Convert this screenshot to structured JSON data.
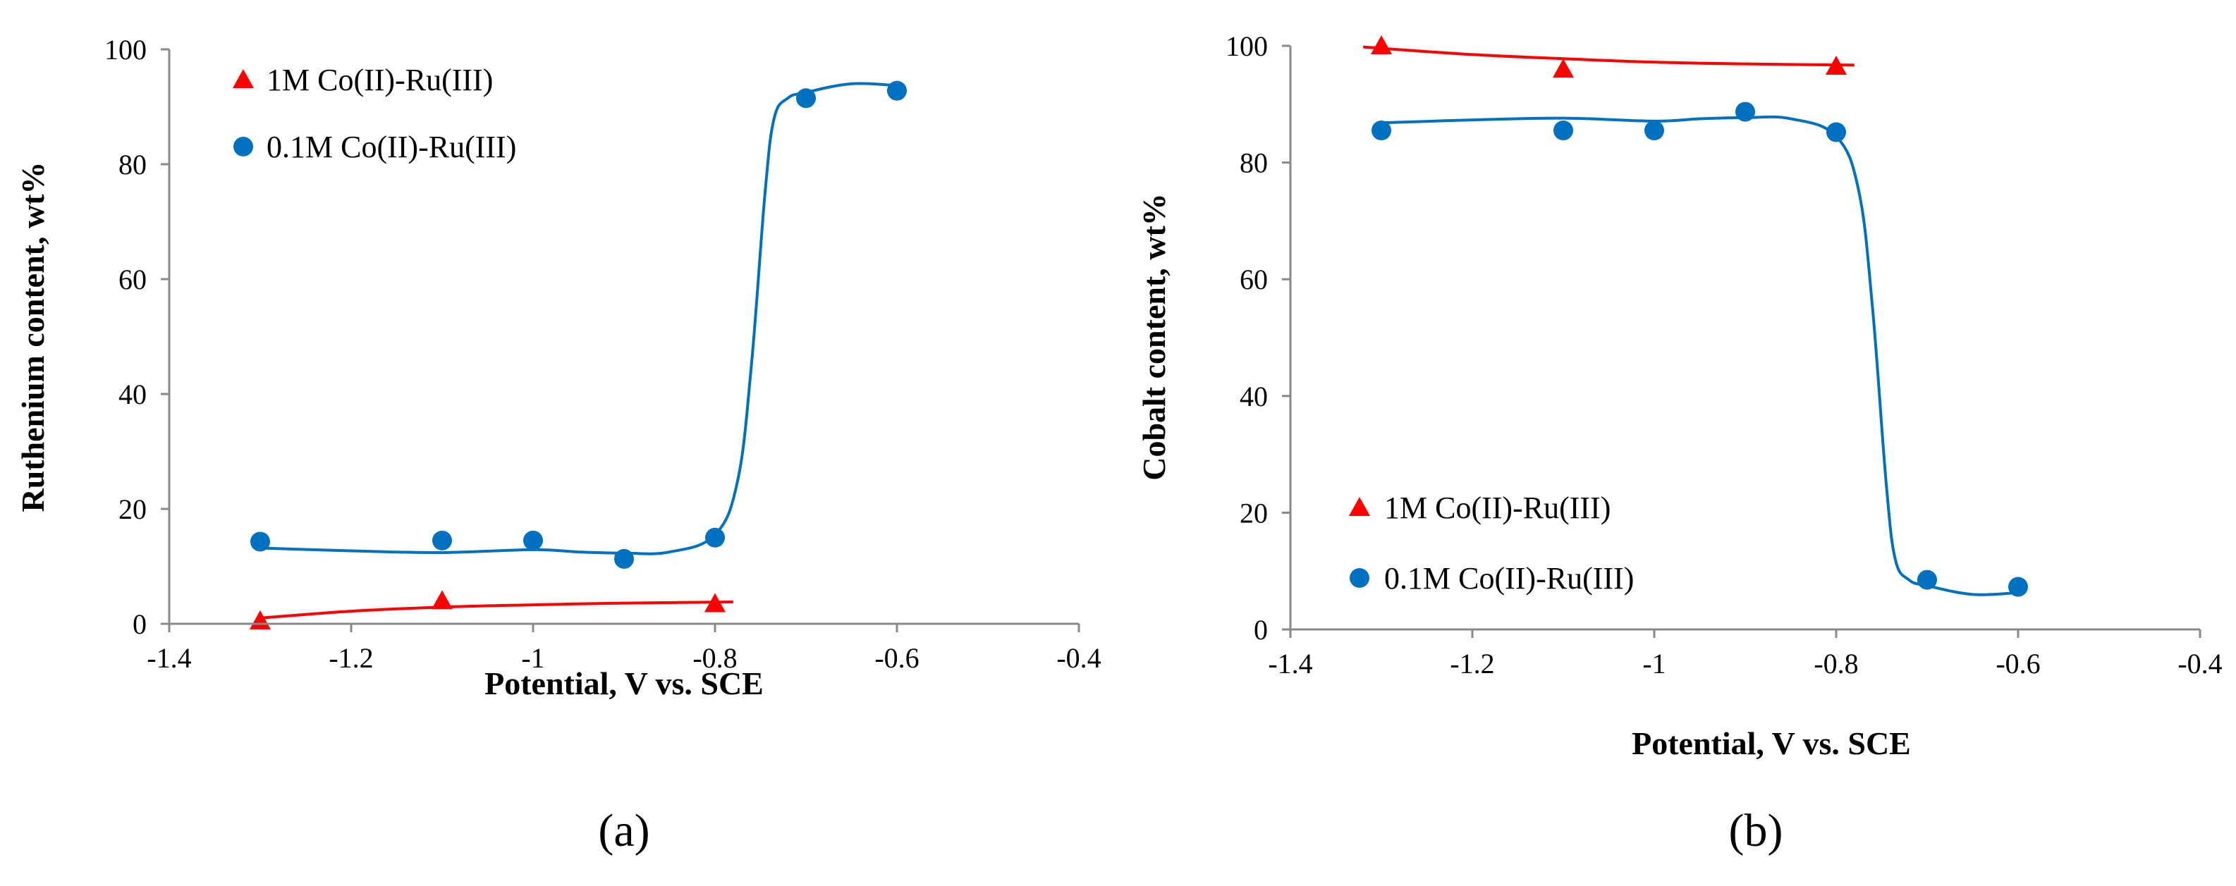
{
  "chart_data": [
    {
      "id": "a",
      "type": "scatter",
      "caption": "(a)",
      "xlabel": "Potential, V vs. SCE",
      "ylabel": "Ruthenium  content, wt%",
      "xlim": [
        -1.4,
        -0.4
      ],
      "ylim": [
        0,
        100
      ],
      "xticks": [
        -1.4,
        -1.2,
        -1,
        -0.8,
        -0.6,
        -0.4
      ],
      "xtick_labels": [
        "-1.4",
        "-1.2",
        "-1",
        "-0.8",
        "-0.6",
        "-0.4"
      ],
      "yticks": [
        0,
        20,
        40,
        60,
        80,
        100
      ],
      "ytick_labels": [
        "0",
        "20",
        "40",
        "60",
        "80",
        "100"
      ],
      "grid": false,
      "legend_position": "top-left",
      "series": [
        {
          "name": "1M Co(II)-Ru(III)",
          "marker": "triangle",
          "color": "#ff0000",
          "points": [
            {
              "x": -1.3,
              "y": 0.5
            },
            {
              "x": -1.1,
              "y": 4
            },
            {
              "x": -0.8,
              "y": 3.5
            }
          ],
          "fit": [
            [
              -1.3,
              1.0
            ],
            [
              -1.2,
              2.2
            ],
            [
              -1.1,
              2.9
            ],
            [
              -1.0,
              3.3
            ],
            [
              -0.9,
              3.6
            ],
            [
              -0.78,
              3.8
            ]
          ]
        },
        {
          "name": "0.1M Co(II)-Ru(III)",
          "marker": "circle",
          "color": "#0070c0",
          "points": [
            {
              "x": -1.3,
              "y": 14.3
            },
            {
              "x": -1.1,
              "y": 14.5
            },
            {
              "x": -1.0,
              "y": 14.5
            },
            {
              "x": -0.9,
              "y": 11.3
            },
            {
              "x": -0.8,
              "y": 15
            },
            {
              "x": -0.7,
              "y": 91.5
            },
            {
              "x": -0.6,
              "y": 92.8
            }
          ],
          "fit": [
            [
              -1.3,
              13.2
            ],
            [
              -1.2,
              12.7
            ],
            [
              -1.1,
              12.4
            ],
            [
              -1.0,
              12.9
            ],
            [
              -0.95,
              12.5
            ],
            [
              -0.9,
              12.3
            ],
            [
              -0.85,
              12.5
            ],
            [
              -0.8,
              15.5
            ],
            [
              -0.775,
              25
            ],
            [
              -0.76,
              45
            ],
            [
              -0.745,
              75
            ],
            [
              -0.735,
              88
            ],
            [
              -0.72,
              91.5
            ],
            [
              -0.7,
              92.5
            ],
            [
              -0.65,
              94
            ],
            [
              -0.6,
              93.7
            ]
          ]
        }
      ]
    },
    {
      "id": "b",
      "type": "scatter",
      "caption": "(b)",
      "xlabel": "Potential, V vs. SCE",
      "ylabel": "Cobalt content, wt%",
      "xlim": [
        -1.4,
        -0.4
      ],
      "ylim": [
        0,
        100
      ],
      "xticks": [
        -1.4,
        -1.2,
        -1,
        -0.8,
        -0.6,
        -0.4
      ],
      "xtick_labels": [
        "-1.4",
        "-1.2",
        "-1",
        "-0.8",
        "-0.6",
        "-0.4"
      ],
      "yticks": [
        0,
        20,
        40,
        60,
        80,
        100
      ],
      "ytick_labels": [
        "0",
        "20",
        "40",
        "60",
        "80",
        "100"
      ],
      "grid": false,
      "legend_position": "bottom-left",
      "series": [
        {
          "name": "1M Co(II)-Ru(III)",
          "marker": "triangle",
          "color": "#ff0000",
          "points": [
            {
              "x": -1.3,
              "y": 100
            },
            {
              "x": -1.1,
              "y": 96
            },
            {
              "x": -0.8,
              "y": 96.5
            }
          ],
          "fit": [
            [
              -1.32,
              99.8
            ],
            [
              -1.2,
              98.5
            ],
            [
              -1.1,
              97.8
            ],
            [
              -1.0,
              97.2
            ],
            [
              -0.9,
              96.9
            ],
            [
              -0.78,
              96.7
            ]
          ]
        },
        {
          "name": "0.1M Co(II)-Ru(III)",
          "marker": "circle",
          "color": "#0070c0",
          "points": [
            {
              "x": -1.3,
              "y": 85.5
            },
            {
              "x": -1.1,
              "y": 85.5
            },
            {
              "x": -1.0,
              "y": 85.5
            },
            {
              "x": -0.9,
              "y": 88.7
            },
            {
              "x": -0.8,
              "y": 85.2
            },
            {
              "x": -0.7,
              "y": 8.5
            },
            {
              "x": -0.6,
              "y": 7.3
            }
          ],
          "fit": [
            [
              -1.3,
              86.8
            ],
            [
              -1.2,
              87.3
            ],
            [
              -1.1,
              87.6
            ],
            [
              -1.0,
              87.1
            ],
            [
              -0.95,
              87.5
            ],
            [
              -0.9,
              87.7
            ],
            [
              -0.85,
              87.5
            ],
            [
              -0.8,
              84.5
            ],
            [
              -0.775,
              75
            ],
            [
              -0.76,
              55
            ],
            [
              -0.745,
              25
            ],
            [
              -0.735,
              12
            ],
            [
              -0.72,
              8.5
            ],
            [
              -0.7,
              7.5
            ],
            [
              -0.65,
              6
            ],
            [
              -0.6,
              6.3
            ]
          ]
        }
      ]
    }
  ]
}
